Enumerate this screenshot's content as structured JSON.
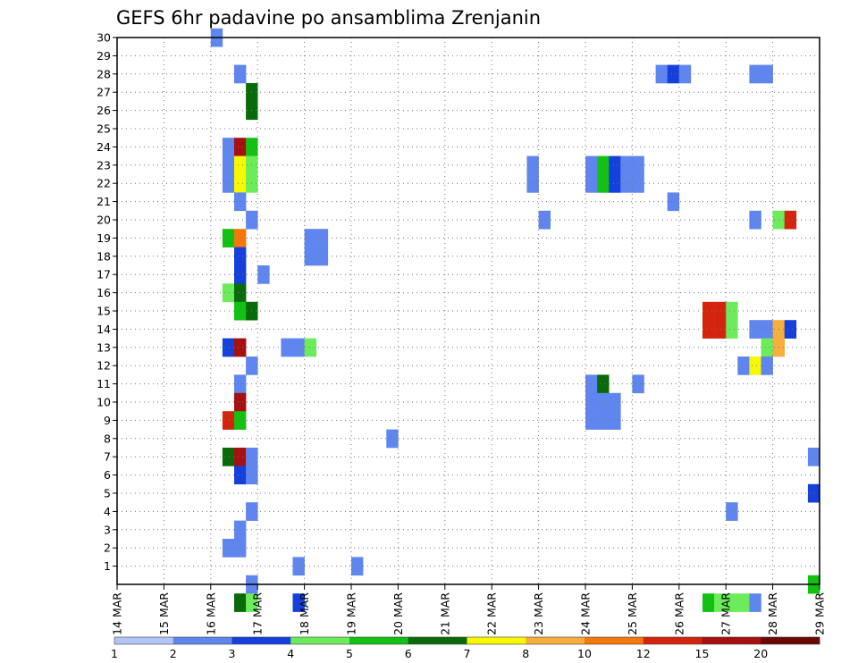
{
  "chart_data": {
    "type": "heatmap",
    "title": "GEFS 6hr padavine po ansamblima Zrenjanin",
    "y_range": [
      0,
      30
    ],
    "y_tick_labels": [
      "1",
      "2",
      "3",
      "4",
      "5",
      "6",
      "7",
      "8",
      "9",
      "10",
      "11",
      "12",
      "13",
      "14",
      "15",
      "16",
      "17",
      "18",
      "19",
      "20",
      "21",
      "22",
      "23",
      "24",
      "25",
      "26",
      "27",
      "28",
      "29",
      "30"
    ],
    "x_range_steps": [
      0,
      60
    ],
    "x_steps_per_day": 4,
    "x_tick_labels": [
      "14 MAR",
      "15 MAR",
      "16 MAR",
      "17 MAR",
      "18 MAR",
      "19 MAR",
      "20 MAR",
      "21 MAR",
      "22 MAR",
      "23 MAR",
      "24 MAR",
      "25 MAR",
      "26 MAR",
      "27 MAR",
      "28 MAR",
      "29 MAR"
    ],
    "grid": true,
    "colorbar": {
      "colors": [
        "#b2c5f8",
        "#5e86ee",
        "#1640db",
        "#6cec5a",
        "#12c112",
        "#086a08",
        "#f8f800",
        "#f8ae3c",
        "#f5780a",
        "#d5240e",
        "#a81010",
        "#6a0808"
      ],
      "labels": [
        "1",
        "2",
        "3",
        "4",
        "5",
        "6",
        "7",
        "8",
        "10",
        "12",
        "15",
        "20"
      ]
    },
    "cells": [
      [
        8.5,
        30,
        1
      ],
      [
        10.5,
        28,
        1
      ],
      [
        46.5,
        28,
        1
      ],
      [
        47.5,
        28,
        2
      ],
      [
        48.5,
        28,
        1
      ],
      [
        54.5,
        28,
        1
      ],
      [
        55.5,
        28,
        1
      ],
      [
        11.5,
        27,
        5
      ],
      [
        11.5,
        26,
        5
      ],
      [
        9.5,
        24,
        1
      ],
      [
        10.5,
        24,
        10
      ],
      [
        11.5,
        24,
        4
      ],
      [
        9.5,
        23,
        1
      ],
      [
        10.5,
        23,
        6
      ],
      [
        11.5,
        23,
        3
      ],
      [
        35.5,
        23,
        1
      ],
      [
        40.5,
        23,
        1
      ],
      [
        41.5,
        23,
        4
      ],
      [
        42.5,
        23,
        2
      ],
      [
        43.5,
        23,
        1
      ],
      [
        44.5,
        23,
        1
      ],
      [
        9.5,
        22,
        1
      ],
      [
        10.5,
        22,
        6
      ],
      [
        11.5,
        22,
        3
      ],
      [
        35.5,
        22,
        1
      ],
      [
        40.5,
        22,
        1
      ],
      [
        41.5,
        22,
        4
      ],
      [
        42.5,
        22,
        2
      ],
      [
        43.5,
        22,
        1
      ],
      [
        44.5,
        22,
        1
      ],
      [
        10.5,
        21,
        1
      ],
      [
        47.5,
        21,
        1
      ],
      [
        11.5,
        20,
        1
      ],
      [
        36.5,
        20,
        1
      ],
      [
        54.5,
        20,
        1
      ],
      [
        56.5,
        20,
        3
      ],
      [
        57.5,
        20,
        9
      ],
      [
        9.5,
        19,
        4
      ],
      [
        10.5,
        19,
        8
      ],
      [
        16.5,
        19,
        1
      ],
      [
        17.5,
        19,
        1
      ],
      [
        10.5,
        18,
        2
      ],
      [
        16.5,
        18,
        1
      ],
      [
        17.5,
        18,
        1
      ],
      [
        10.5,
        17,
        2
      ],
      [
        12.5,
        17,
        1
      ],
      [
        9.5,
        16,
        3
      ],
      [
        10.5,
        16,
        5
      ],
      [
        10.5,
        15,
        4
      ],
      [
        11.5,
        15,
        5
      ],
      [
        50.5,
        15,
        9
      ],
      [
        51.5,
        15,
        9
      ],
      [
        52.5,
        15,
        3
      ],
      [
        50.5,
        14,
        9
      ],
      [
        51.5,
        14,
        9
      ],
      [
        52.5,
        14,
        3
      ],
      [
        54.5,
        14,
        1
      ],
      [
        55.5,
        14,
        1
      ],
      [
        56.5,
        14,
        7
      ],
      [
        57.5,
        14,
        2
      ],
      [
        9.5,
        13,
        2
      ],
      [
        10.5,
        13,
        10
      ],
      [
        14.5,
        13,
        1
      ],
      [
        15.5,
        13,
        1
      ],
      [
        16.5,
        13,
        3
      ],
      [
        55.5,
        13,
        3
      ],
      [
        56.5,
        13,
        7
      ],
      [
        11.5,
        12,
        1
      ],
      [
        53.5,
        12,
        1
      ],
      [
        54.5,
        12,
        6
      ],
      [
        55.5,
        12,
        1
      ],
      [
        10.5,
        11,
        1
      ],
      [
        40.5,
        11,
        1
      ],
      [
        41.5,
        11,
        5
      ],
      [
        44.5,
        11,
        1
      ],
      [
        10.5,
        10,
        10
      ],
      [
        40.5,
        10,
        1
      ],
      [
        41.5,
        10,
        1
      ],
      [
        42.5,
        10,
        1
      ],
      [
        9.5,
        9,
        9
      ],
      [
        10.5,
        9,
        4
      ],
      [
        40.5,
        9,
        1
      ],
      [
        41.5,
        9,
        1
      ],
      [
        42.5,
        9,
        1
      ],
      [
        23.5,
        8,
        1
      ],
      [
        9.5,
        7,
        5
      ],
      [
        10.5,
        7,
        10
      ],
      [
        11.5,
        7,
        1
      ],
      [
        59.5,
        7,
        1
      ],
      [
        10.5,
        6,
        2
      ],
      [
        11.5,
        6,
        1
      ],
      [
        59.5,
        5,
        2
      ],
      [
        11.5,
        4,
        1
      ],
      [
        52.5,
        4,
        1
      ],
      [
        10.5,
        3,
        1
      ],
      [
        9.5,
        2,
        1
      ],
      [
        10.5,
        2,
        1
      ],
      [
        15.5,
        1,
        1
      ],
      [
        20.5,
        1,
        1
      ],
      [
        11.5,
        0,
        1
      ],
      [
        59.5,
        0,
        4
      ],
      [
        10.5,
        -1,
        5
      ],
      [
        11.5,
        -1,
        3
      ],
      [
        15.5,
        -1,
        2
      ],
      [
        50.5,
        -1,
        4
      ],
      [
        51.5,
        -1,
        3
      ],
      [
        52.5,
        -1,
        3
      ],
      [
        53.5,
        -1,
        3
      ],
      [
        54.5,
        -1,
        1
      ]
    ]
  }
}
